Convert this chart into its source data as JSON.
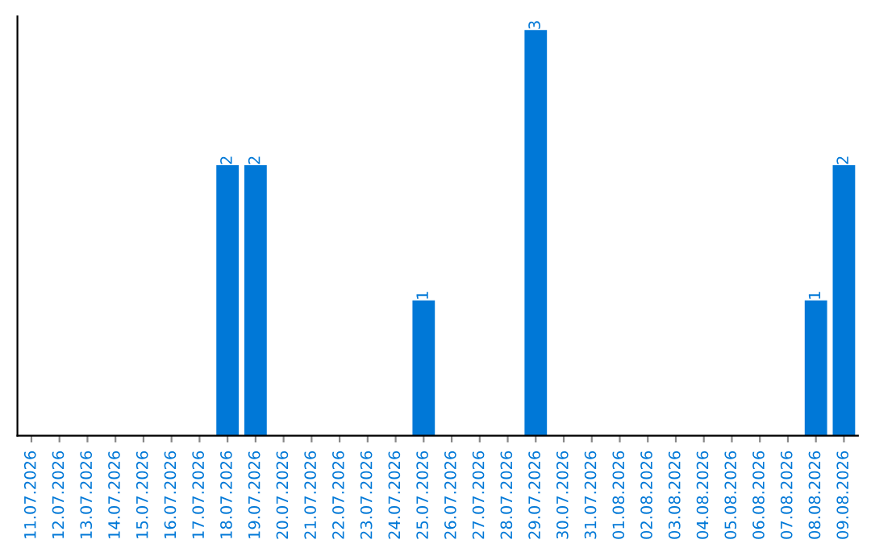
{
  "chart_data": {
    "type": "bar",
    "categories": [
      "11.07.2026",
      "12.07.2026",
      "13.07.2026",
      "14.07.2026",
      "15.07.2026",
      "16.07.2026",
      "17.07.2026",
      "18.07.2026",
      "19.07.2026",
      "20.07.2026",
      "21.07.2026",
      "22.07.2026",
      "23.07.2026",
      "24.07.2026",
      "25.07.2026",
      "26.07.2026",
      "27.07.2026",
      "28.07.2026",
      "29.07.2026",
      "30.07.2026",
      "31.07.2026",
      "01.08.2026",
      "02.08.2026",
      "03.08.2026",
      "04.08.2026",
      "05.08.2026",
      "06.08.2026",
      "07.08.2026",
      "08.08.2026",
      "09.08.2026"
    ],
    "values": [
      0,
      0,
      0,
      0,
      0,
      0,
      0,
      2,
      2,
      0,
      0,
      0,
      0,
      0,
      1,
      0,
      0,
      0,
      3,
      0,
      0,
      0,
      0,
      0,
      0,
      0,
      0,
      0,
      1,
      2
    ],
    "color": "#0078d7",
    "ylim": [
      0,
      3.1
    ],
    "tick_labels": "x",
    "value_labels": [
      null,
      null,
      null,
      null,
      null,
      null,
      null,
      "2",
      "2",
      null,
      null,
      null,
      null,
      null,
      "1",
      null,
      null,
      null,
      "3",
      null,
      null,
      null,
      null,
      null,
      null,
      null,
      null,
      null,
      "1",
      "2"
    ],
    "grid": false
  }
}
